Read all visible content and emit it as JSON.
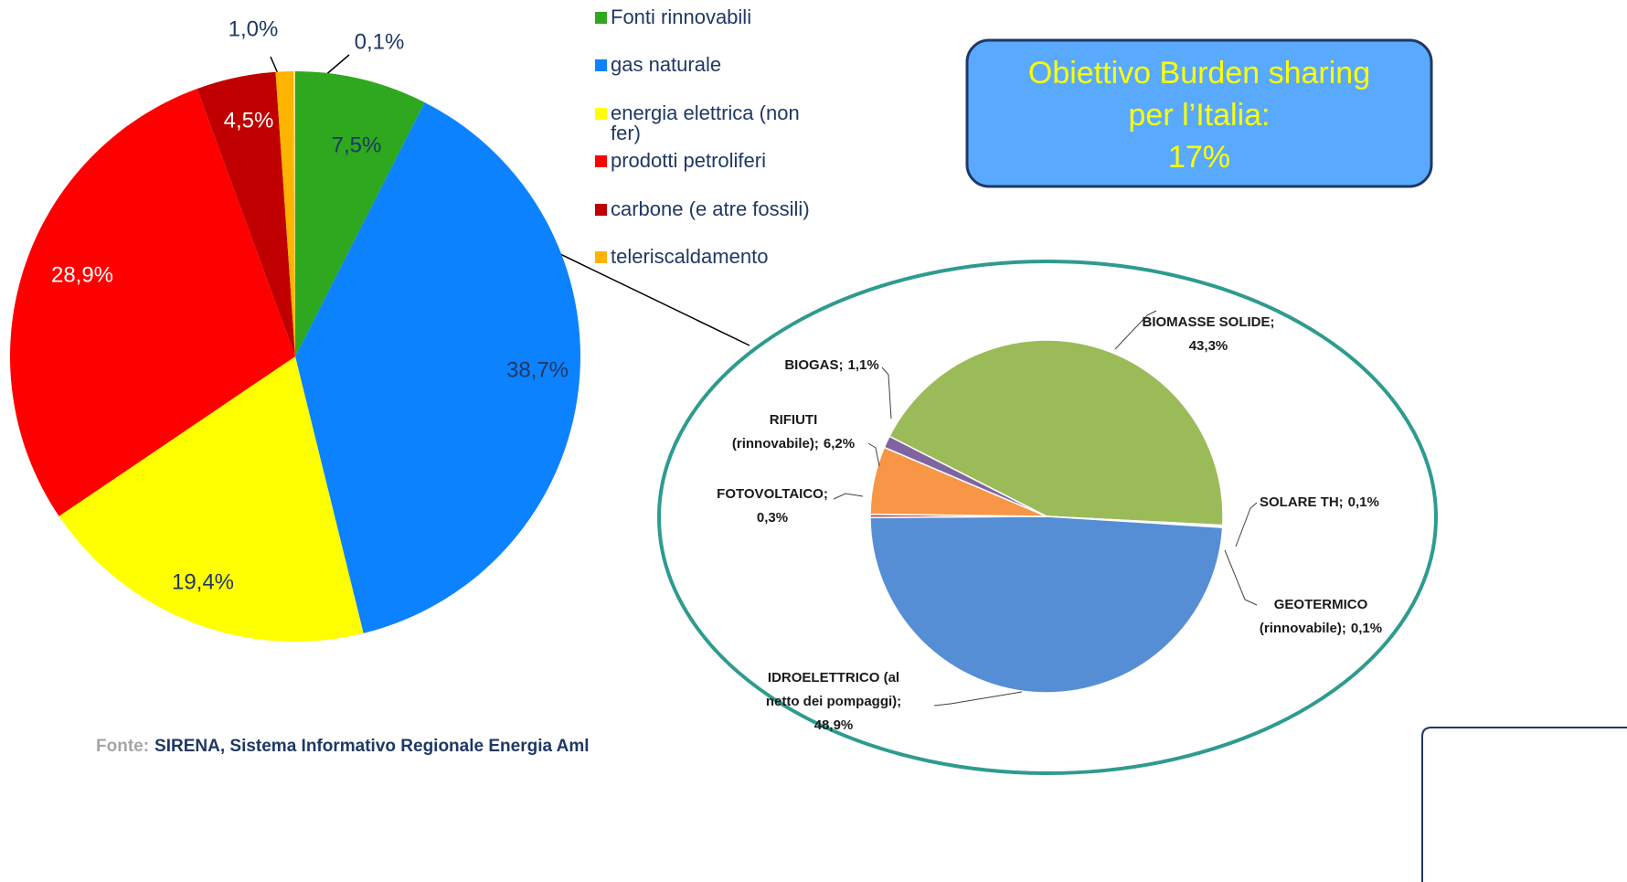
{
  "chart_data": [
    {
      "type": "pie",
      "categories": [
        "Fonti rinnovabili",
        "gas naturale",
        "energia elettrica (non fer)",
        "prodotti petroliferi",
        "carbone (e atre fossili)",
        "teleriscaldamento",
        null
      ],
      "values": [
        7.5,
        38.7,
        19.4,
        28.9,
        4.5,
        1.0,
        0.1
      ],
      "value_labels": [
        "7,5%",
        "38,7%",
        "19,4%",
        "28,9%",
        "4,5%",
        "1,0%",
        "0,1%"
      ],
      "colors": [
        "#2ea81e",
        "#0c82ff",
        "#ffff00",
        "#ff0000",
        "#c00000",
        "#ffb400",
        "#ffe08a"
      ],
      "legend": true,
      "annotation": [
        "Obiettivo Burden sharing",
        "per l’Italia:",
        "17%"
      ],
      "source": {
        "label": "Fonte:",
        "text": "SIRENA, Sistema Informativo Regionale Energia Aml"
      }
    },
    {
      "type": "pie",
      "categories": [
        "BIOMASSE SOLIDE;",
        "SOLARE TH;",
        "GEOTERMICO (rinnovabile);",
        "IDROELETTRICO (al netto dei pompaggi);",
        "FOTOVOLTAICO;",
        "RIFIUTI (rinnovabile);",
        "BIOGAS;"
      ],
      "values": [
        43.3,
        0.1,
        0.1,
        48.9,
        0.3,
        6.2,
        1.1
      ],
      "value_labels": [
        "43,3%",
        "0,1%",
        "0,1%",
        "48,9%",
        "0,3%",
        "6,2%",
        "1,1%"
      ],
      "colors": [
        "#9bbb59",
        "#f79646",
        "#c0c0c0",
        "#558ed5",
        "#c0504d",
        "#f79646",
        "#8064a2"
      ]
    }
  ]
}
